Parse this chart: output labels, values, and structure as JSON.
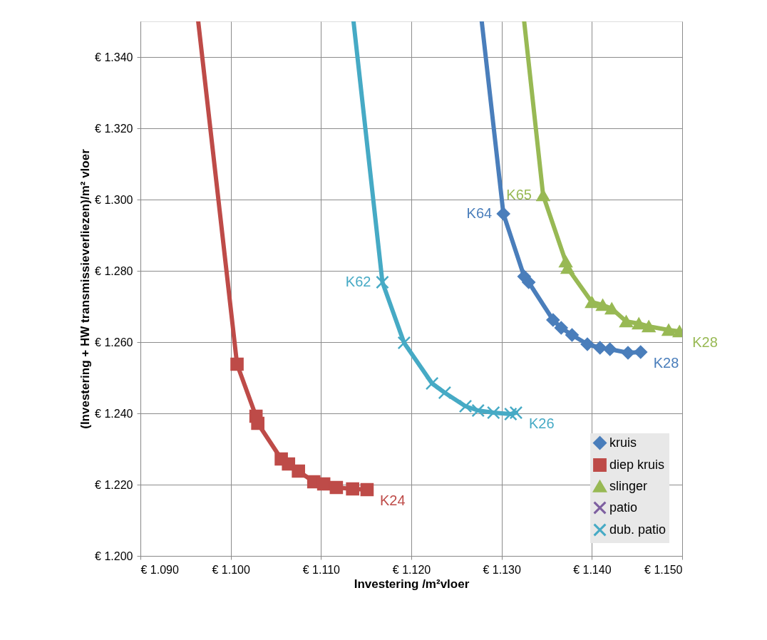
{
  "chart_data": {
    "type": "line",
    "xlabel": "Investering /m²vloer",
    "ylabel": "(Investering + HW transmissieverliezen)/m² vloer",
    "xlim": [
      1090,
      1150
    ],
    "ylim": [
      1200,
      1350
    ],
    "xticks": [
      {
        "value": 1090,
        "label": "€ 1.090"
      },
      {
        "value": 1100,
        "label": "€ 1.100"
      },
      {
        "value": 1110,
        "label": "€ 1.110"
      },
      {
        "value": 1120,
        "label": "€ 1.120"
      },
      {
        "value": 1130,
        "label": "€ 1.130"
      },
      {
        "value": 1140,
        "label": "€ 1.140"
      },
      {
        "value": 1150,
        "label": "€ 1.150"
      }
    ],
    "yticks": [
      {
        "value": 1200,
        "label": "€ 1.200"
      },
      {
        "value": 1220,
        "label": "€ 1.220"
      },
      {
        "value": 1240,
        "label": "€ 1.240"
      },
      {
        "value": 1260,
        "label": "€ 1.260"
      },
      {
        "value": 1280,
        "label": "€ 1.280"
      },
      {
        "value": 1300,
        "label": "€ 1.300"
      },
      {
        "value": 1320,
        "label": "€ 1.320"
      },
      {
        "value": 1340,
        "label": "€ 1.340"
      }
    ],
    "grid": true,
    "legend": "bottom right",
    "line_style": "solid",
    "series": [
      {
        "name": "kruis",
        "color": "#4a7ebb",
        "marker": "diamond",
        "x": [
          1127.8,
          1130.2,
          1132.5,
          1133.0,
          1135.7,
          1136.6,
          1137.8,
          1139.5,
          1140.9,
          1142.0,
          1144.0,
          1145.4
        ],
        "values": [
          1350,
          1296,
          1278.4,
          1276.8,
          1266.2,
          1264,
          1262,
          1259.4,
          1258.4,
          1258,
          1257,
          1257.2
        ]
      },
      {
        "name": "diep kruis",
        "color": "#be4b48",
        "marker": "square",
        "x": [
          1096.4,
          1100.7,
          1102.8,
          1103.0,
          1105.6,
          1106.4,
          1107.5,
          1109.2,
          1110.3,
          1111.7,
          1113.5,
          1115.1
        ],
        "values": [
          1350,
          1253.8,
          1239.2,
          1237.2,
          1227.2,
          1225.8,
          1223.8,
          1220.8,
          1220.2,
          1219.2,
          1218.8,
          1218.6
        ]
      },
      {
        "name": "slinger",
        "color": "#98b954",
        "marker": "triangle",
        "x": [
          1132.5,
          1134.6,
          1137.1,
          1137.3,
          1140.0,
          1141.2,
          1142.2,
          1143.8,
          1145.2,
          1146.3,
          1148.5,
          1149.7
        ],
        "values": [
          1350,
          1301.2,
          1282.6,
          1280.8,
          1271.2,
          1270.4,
          1269.4,
          1265.8,
          1265.2,
          1264.4,
          1263.4,
          1263
        ]
      },
      {
        "name": "patio",
        "color": "#7d5fa0",
        "marker": "cross"
      },
      {
        "name": "dub. patio",
        "color": "#46aac5",
        "marker": "cross",
        "x": [
          1113.6,
          1116.8,
          1119.2,
          1122.3,
          1123.7,
          1126.0,
          1127.4,
          1129.1,
          1131.0,
          1131.6
        ],
        "values": [
          1350,
          1276.8,
          1259.8,
          1248.4,
          1245.8,
          1242,
          1240.8,
          1240.2,
          1239.8,
          1240.2
        ]
      }
    ],
    "annotations": [
      {
        "text": "K64",
        "x": 1130.2,
        "y": 1296
      },
      {
        "text": "K65",
        "x": 1134.6,
        "y": 1301.2
      },
      {
        "text": "K62",
        "x": 1116.8,
        "y": 1276.8
      },
      {
        "text": "K28",
        "x": 1149.7,
        "y": 1263
      },
      {
        "text": "K28",
        "x": 1145.4,
        "y": 1257.2
      },
      {
        "text": "K26",
        "x": 1131.6,
        "y": 1240.2
      },
      {
        "text": "K24",
        "x": 1115.1,
        "y": 1218.6
      }
    ]
  }
}
